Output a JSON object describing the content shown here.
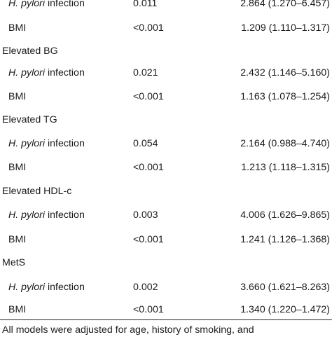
{
  "table": {
    "rows": [
      {
        "kind": "item",
        "var_italic": "H. pylori",
        "var_rest": " infection",
        "p": "0.011",
        "or": "2.864 (1.270–6.457)"
      },
      {
        "kind": "item",
        "var_italic": "",
        "var_rest": "BMI",
        "p": "<0.001",
        "or": "1.209 (1.110–1.317)"
      },
      {
        "kind": "group",
        "label": "Elevated BG"
      },
      {
        "kind": "item",
        "var_italic": "H. pylori",
        "var_rest": " infection",
        "p": "0.021",
        "or": "2.432 (1.146–5.160)"
      },
      {
        "kind": "item",
        "var_italic": "",
        "var_rest": "BMI",
        "p": "<0.001",
        "or": "1.163 (1.078–1.254)"
      },
      {
        "kind": "group",
        "label": "Elevated TG"
      },
      {
        "kind": "item",
        "var_italic": "H. pylori",
        "var_rest": " infection",
        "p": "0.054",
        "or": "2.164 (0.988–4.740)"
      },
      {
        "kind": "item",
        "var_italic": "",
        "var_rest": "BMI",
        "p": "<0.001",
        "or": "1.213 (1.118–1.315)"
      },
      {
        "kind": "group",
        "label": "Elevated HDL-c"
      },
      {
        "kind": "item",
        "var_italic": "H. pylori",
        "var_rest": " infection",
        "p": "0.003",
        "or": "4.006 (1.626–9.865)"
      },
      {
        "kind": "item",
        "var_italic": "",
        "var_rest": "BMI",
        "p": "<0.001",
        "or": "1.241 (1.126–1.368)"
      },
      {
        "kind": "group",
        "label": "MetS"
      },
      {
        "kind": "item",
        "var_italic": "H. pylori",
        "var_rest": " infection",
        "p": "0.002",
        "or": "3.660 (1.621–8.263)"
      },
      {
        "kind": "item",
        "var_italic": "",
        "var_rest": "BMI",
        "p": "<0.001",
        "or": "1.340 (1.220–1.472)"
      }
    ]
  },
  "footnote": "All models were adjusted for age, history of smoking, and"
}
